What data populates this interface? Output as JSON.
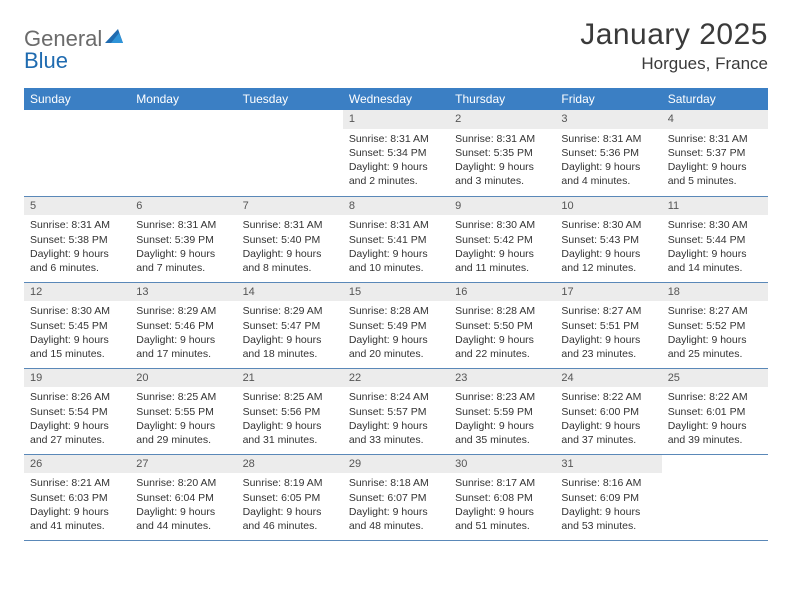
{
  "brand": {
    "part1": "General",
    "part2": "Blue"
  },
  "title": "January 2025",
  "location": "Horgues, France",
  "colors": {
    "header_bg": "#3b7fc4",
    "header_text": "#ffffff",
    "daynum_bg": "#ececec",
    "border": "#5a88b8",
    "logo_gray": "#6b6b6b",
    "logo_blue": "#1f6bb0",
    "text": "#333333"
  },
  "fonts": {
    "title_size": 30,
    "location_size": 17,
    "th_size": 12,
    "cell_size": 10.5
  },
  "weekdays": [
    "Sunday",
    "Monday",
    "Tuesday",
    "Wednesday",
    "Thursday",
    "Friday",
    "Saturday"
  ],
  "weeks": [
    [
      {
        "day": "",
        "sunrise": "",
        "sunset": "",
        "daylight": ""
      },
      {
        "day": "",
        "sunrise": "",
        "sunset": "",
        "daylight": ""
      },
      {
        "day": "",
        "sunrise": "",
        "sunset": "",
        "daylight": ""
      },
      {
        "day": "1",
        "sunrise": "Sunrise: 8:31 AM",
        "sunset": "Sunset: 5:34 PM",
        "daylight": "Daylight: 9 hours and 2 minutes."
      },
      {
        "day": "2",
        "sunrise": "Sunrise: 8:31 AM",
        "sunset": "Sunset: 5:35 PM",
        "daylight": "Daylight: 9 hours and 3 minutes."
      },
      {
        "day": "3",
        "sunrise": "Sunrise: 8:31 AM",
        "sunset": "Sunset: 5:36 PM",
        "daylight": "Daylight: 9 hours and 4 minutes."
      },
      {
        "day": "4",
        "sunrise": "Sunrise: 8:31 AM",
        "sunset": "Sunset: 5:37 PM",
        "daylight": "Daylight: 9 hours and 5 minutes."
      }
    ],
    [
      {
        "day": "5",
        "sunrise": "Sunrise: 8:31 AM",
        "sunset": "Sunset: 5:38 PM",
        "daylight": "Daylight: 9 hours and 6 minutes."
      },
      {
        "day": "6",
        "sunrise": "Sunrise: 8:31 AM",
        "sunset": "Sunset: 5:39 PM",
        "daylight": "Daylight: 9 hours and 7 minutes."
      },
      {
        "day": "7",
        "sunrise": "Sunrise: 8:31 AM",
        "sunset": "Sunset: 5:40 PM",
        "daylight": "Daylight: 9 hours and 8 minutes."
      },
      {
        "day": "8",
        "sunrise": "Sunrise: 8:31 AM",
        "sunset": "Sunset: 5:41 PM",
        "daylight": "Daylight: 9 hours and 10 minutes."
      },
      {
        "day": "9",
        "sunrise": "Sunrise: 8:30 AM",
        "sunset": "Sunset: 5:42 PM",
        "daylight": "Daylight: 9 hours and 11 minutes."
      },
      {
        "day": "10",
        "sunrise": "Sunrise: 8:30 AM",
        "sunset": "Sunset: 5:43 PM",
        "daylight": "Daylight: 9 hours and 12 minutes."
      },
      {
        "day": "11",
        "sunrise": "Sunrise: 8:30 AM",
        "sunset": "Sunset: 5:44 PM",
        "daylight": "Daylight: 9 hours and 14 minutes."
      }
    ],
    [
      {
        "day": "12",
        "sunrise": "Sunrise: 8:30 AM",
        "sunset": "Sunset: 5:45 PM",
        "daylight": "Daylight: 9 hours and 15 minutes."
      },
      {
        "day": "13",
        "sunrise": "Sunrise: 8:29 AM",
        "sunset": "Sunset: 5:46 PM",
        "daylight": "Daylight: 9 hours and 17 minutes."
      },
      {
        "day": "14",
        "sunrise": "Sunrise: 8:29 AM",
        "sunset": "Sunset: 5:47 PM",
        "daylight": "Daylight: 9 hours and 18 minutes."
      },
      {
        "day": "15",
        "sunrise": "Sunrise: 8:28 AM",
        "sunset": "Sunset: 5:49 PM",
        "daylight": "Daylight: 9 hours and 20 minutes."
      },
      {
        "day": "16",
        "sunrise": "Sunrise: 8:28 AM",
        "sunset": "Sunset: 5:50 PM",
        "daylight": "Daylight: 9 hours and 22 minutes."
      },
      {
        "day": "17",
        "sunrise": "Sunrise: 8:27 AM",
        "sunset": "Sunset: 5:51 PM",
        "daylight": "Daylight: 9 hours and 23 minutes."
      },
      {
        "day": "18",
        "sunrise": "Sunrise: 8:27 AM",
        "sunset": "Sunset: 5:52 PM",
        "daylight": "Daylight: 9 hours and 25 minutes."
      }
    ],
    [
      {
        "day": "19",
        "sunrise": "Sunrise: 8:26 AM",
        "sunset": "Sunset: 5:54 PM",
        "daylight": "Daylight: 9 hours and 27 minutes."
      },
      {
        "day": "20",
        "sunrise": "Sunrise: 8:25 AM",
        "sunset": "Sunset: 5:55 PM",
        "daylight": "Daylight: 9 hours and 29 minutes."
      },
      {
        "day": "21",
        "sunrise": "Sunrise: 8:25 AM",
        "sunset": "Sunset: 5:56 PM",
        "daylight": "Daylight: 9 hours and 31 minutes."
      },
      {
        "day": "22",
        "sunrise": "Sunrise: 8:24 AM",
        "sunset": "Sunset: 5:57 PM",
        "daylight": "Daylight: 9 hours and 33 minutes."
      },
      {
        "day": "23",
        "sunrise": "Sunrise: 8:23 AM",
        "sunset": "Sunset: 5:59 PM",
        "daylight": "Daylight: 9 hours and 35 minutes."
      },
      {
        "day": "24",
        "sunrise": "Sunrise: 8:22 AM",
        "sunset": "Sunset: 6:00 PM",
        "daylight": "Daylight: 9 hours and 37 minutes."
      },
      {
        "day": "25",
        "sunrise": "Sunrise: 8:22 AM",
        "sunset": "Sunset: 6:01 PM",
        "daylight": "Daylight: 9 hours and 39 minutes."
      }
    ],
    [
      {
        "day": "26",
        "sunrise": "Sunrise: 8:21 AM",
        "sunset": "Sunset: 6:03 PM",
        "daylight": "Daylight: 9 hours and 41 minutes."
      },
      {
        "day": "27",
        "sunrise": "Sunrise: 8:20 AM",
        "sunset": "Sunset: 6:04 PM",
        "daylight": "Daylight: 9 hours and 44 minutes."
      },
      {
        "day": "28",
        "sunrise": "Sunrise: 8:19 AM",
        "sunset": "Sunset: 6:05 PM",
        "daylight": "Daylight: 9 hours and 46 minutes."
      },
      {
        "day": "29",
        "sunrise": "Sunrise: 8:18 AM",
        "sunset": "Sunset: 6:07 PM",
        "daylight": "Daylight: 9 hours and 48 minutes."
      },
      {
        "day": "30",
        "sunrise": "Sunrise: 8:17 AM",
        "sunset": "Sunset: 6:08 PM",
        "daylight": "Daylight: 9 hours and 51 minutes."
      },
      {
        "day": "31",
        "sunrise": "Sunrise: 8:16 AM",
        "sunset": "Sunset: 6:09 PM",
        "daylight": "Daylight: 9 hours and 53 minutes."
      },
      {
        "day": "",
        "sunrise": "",
        "sunset": "",
        "daylight": ""
      }
    ]
  ]
}
